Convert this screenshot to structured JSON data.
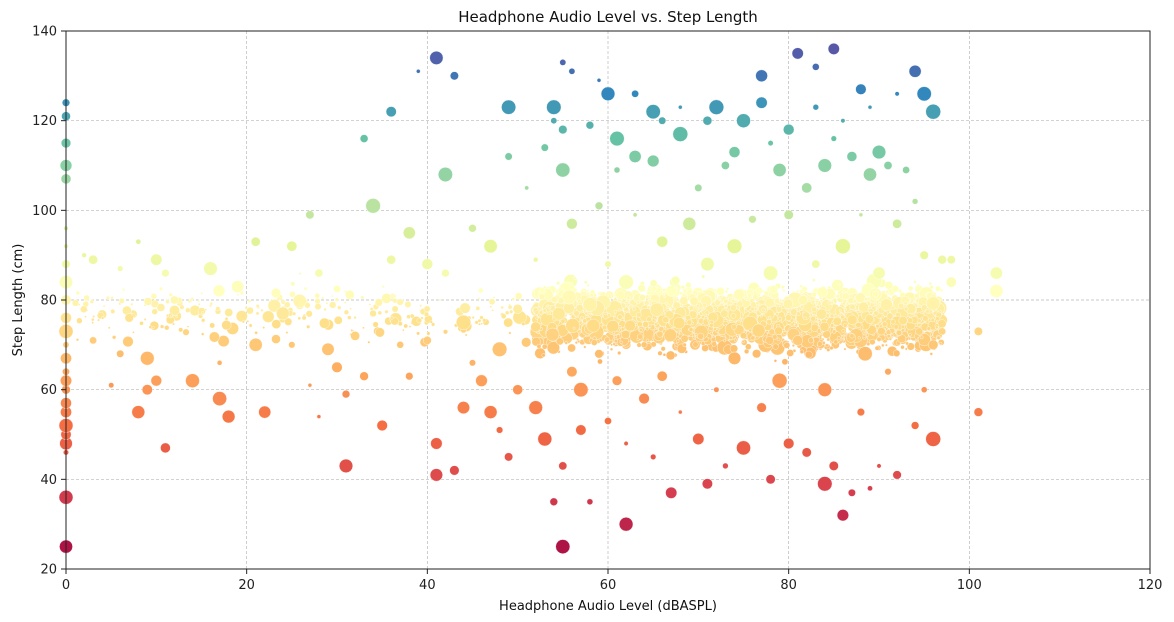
{
  "chart_data": {
    "type": "scatter",
    "title": "Headphone Audio Level vs. Step Length",
    "xlabel": "Headphone Audio Level (dBASPL)",
    "ylabel": "Step Length (cm)",
    "xlim": [
      0,
      120
    ],
    "ylim": [
      20,
      140
    ],
    "xticks": [
      0,
      20,
      40,
      60,
      80,
      100,
      120
    ],
    "yticks": [
      20,
      40,
      60,
      80,
      100,
      120,
      140
    ],
    "grid": true,
    "colormap": "Spectral (color mapped to step length: red = short, yellow = mid, blue = long)",
    "colors": {
      "stop_20": "#9e0142",
      "stop_37": "#d53e4f",
      "stop_52": "#f46d43",
      "stop_65": "#fdae61",
      "stop_75": "#fee08b",
      "stop_82": "#ffffbf",
      "stop_92": "#e6f598",
      "stop_104": "#abdda4",
      "stop_116": "#66c2a5",
      "stop_126": "#3288bd",
      "stop_138": "#5e4fa2"
    },
    "points_note": "Several thousand points; main cluster at x 52-97 dBASPL, y 40-100 cm; sparse points at x 0-50 mostly y 45-100; x=0 column spans y 25-124.",
    "series": [
      {
        "points": [
          [
            0,
            25
          ],
          [
            0,
            36
          ],
          [
            0,
            46
          ],
          [
            0,
            48
          ],
          [
            0,
            50
          ],
          [
            0,
            52
          ],
          [
            0,
            55
          ],
          [
            0,
            57
          ],
          [
            0,
            60
          ],
          [
            0,
            62
          ],
          [
            0,
            64
          ],
          [
            0,
            67
          ],
          [
            0,
            70
          ],
          [
            0,
            73
          ],
          [
            0,
            76
          ],
          [
            0,
            80
          ],
          [
            0,
            84
          ],
          [
            0,
            88
          ],
          [
            0,
            92
          ],
          [
            0,
            96
          ],
          [
            0,
            107
          ],
          [
            0,
            110
          ],
          [
            0,
            115
          ],
          [
            0,
            121
          ],
          [
            0,
            124
          ],
          [
            2,
            90
          ],
          [
            3,
            89
          ],
          [
            3,
            71
          ],
          [
            5,
            61
          ],
          [
            6,
            87
          ],
          [
            6,
            68
          ],
          [
            7,
            76
          ],
          [
            8,
            93
          ],
          [
            8,
            55
          ],
          [
            9,
            60
          ],
          [
            9,
            67
          ],
          [
            10,
            89
          ],
          [
            10,
            62
          ],
          [
            11,
            47
          ],
          [
            11,
            86
          ],
          [
            12,
            80
          ],
          [
            14,
            62
          ],
          [
            16,
            87
          ],
          [
            17,
            58
          ],
          [
            17,
            66
          ],
          [
            18,
            54
          ],
          [
            19,
            83
          ],
          [
            21,
            93
          ],
          [
            21,
            70
          ],
          [
            22,
            55
          ],
          [
            24,
            77
          ],
          [
            25,
            92
          ],
          [
            25,
            70
          ],
          [
            27,
            99
          ],
          [
            27,
            61
          ],
          [
            28,
            86
          ],
          [
            28,
            54
          ],
          [
            29,
            69
          ],
          [
            30,
            65
          ],
          [
            31,
            43
          ],
          [
            31,
            59
          ],
          [
            32,
            72
          ],
          [
            33,
            116
          ],
          [
            33,
            63
          ],
          [
            34,
            101
          ],
          [
            34,
            77
          ],
          [
            35,
            52
          ],
          [
            36,
            122
          ],
          [
            36,
            89
          ],
          [
            37,
            70
          ],
          [
            38,
            95
          ],
          [
            38,
            63
          ],
          [
            39,
            131
          ],
          [
            40,
            88
          ],
          [
            40,
            71
          ],
          [
            41,
            134
          ],
          [
            41,
            48
          ],
          [
            41,
            41
          ],
          [
            42,
            108
          ],
          [
            42,
            86
          ],
          [
            43,
            130
          ],
          [
            43,
            42
          ],
          [
            44,
            75
          ],
          [
            44,
            56
          ],
          [
            45,
            96
          ],
          [
            45,
            66
          ],
          [
            46,
            62
          ],
          [
            47,
            92
          ],
          [
            47,
            55
          ],
          [
            48,
            51
          ],
          [
            48,
            69
          ],
          [
            49,
            123
          ],
          [
            49,
            112
          ],
          [
            49,
            45
          ],
          [
            50,
            60
          ],
          [
            50,
            78
          ],
          [
            51,
            105
          ],
          [
            52,
            89
          ],
          [
            52,
            74
          ],
          [
            52,
            56
          ],
          [
            53,
            114
          ],
          [
            53,
            49
          ],
          [
            54,
            123
          ],
          [
            54,
            120
          ],
          [
            54,
            35
          ],
          [
            55,
            133
          ],
          [
            55,
            118
          ],
          [
            55,
            109
          ],
          [
            55,
            25
          ],
          [
            55,
            43
          ],
          [
            56,
            131
          ],
          [
            56,
            97
          ],
          [
            56,
            64
          ],
          [
            57,
            60
          ],
          [
            57,
            51
          ],
          [
            58,
            119
          ],
          [
            58,
            35
          ],
          [
            58,
            79
          ],
          [
            59,
            129
          ],
          [
            59,
            101
          ],
          [
            59,
            68
          ],
          [
            60,
            126
          ],
          [
            60,
            88
          ],
          [
            60,
            53
          ],
          [
            61,
            116
          ],
          [
            61,
            109
          ],
          [
            61,
            62
          ],
          [
            62,
            30
          ],
          [
            62,
            48
          ],
          [
            62,
            84
          ],
          [
            63,
            126
          ],
          [
            63,
            112
          ],
          [
            63,
            99
          ],
          [
            64,
            70
          ],
          [
            64,
            58
          ],
          [
            65,
            122
          ],
          [
            65,
            111
          ],
          [
            65,
            45
          ],
          [
            66,
            120
          ],
          [
            66,
            93
          ],
          [
            66,
            63
          ],
          [
            67,
            37
          ],
          [
            67,
            82
          ],
          [
            68,
            123
          ],
          [
            68,
            117
          ],
          [
            68,
            55
          ],
          [
            69,
            97
          ],
          [
            69,
            75
          ],
          [
            70,
            105
          ],
          [
            70,
            49
          ],
          [
            71,
            120
          ],
          [
            71,
            88
          ],
          [
            71,
            39
          ],
          [
            72,
            123
          ],
          [
            72,
            60
          ],
          [
            73,
            110
          ],
          [
            73,
            43
          ],
          [
            74,
            113
          ],
          [
            74,
            92
          ],
          [
            74,
            67
          ],
          [
            75,
            120
          ],
          [
            75,
            47
          ],
          [
            76,
            98
          ],
          [
            76,
            78
          ],
          [
            77,
            130
          ],
          [
            77,
            124
          ],
          [
            77,
            56
          ],
          [
            78,
            115
          ],
          [
            78,
            40
          ],
          [
            78,
            86
          ],
          [
            79,
            109
          ],
          [
            79,
            62
          ],
          [
            80,
            118
          ],
          [
            80,
            99
          ],
          [
            80,
            48
          ],
          [
            81,
            135
          ],
          [
            81,
            71
          ],
          [
            82,
            105
          ],
          [
            82,
            46
          ],
          [
            83,
            123
          ],
          [
            83,
            132
          ],
          [
            83,
            88
          ],
          [
            84,
            39
          ],
          [
            84,
            110
          ],
          [
            84,
            60
          ],
          [
            85,
            136
          ],
          [
            85,
            116
          ],
          [
            85,
            43
          ],
          [
            86,
            120
          ],
          [
            86,
            32
          ],
          [
            86,
            92
          ],
          [
            87,
            112
          ],
          [
            87,
            37
          ],
          [
            87,
            72
          ],
          [
            88,
            127
          ],
          [
            88,
            99
          ],
          [
            88,
            55
          ],
          [
            89,
            123
          ],
          [
            89,
            108
          ],
          [
            89,
            38
          ],
          [
            90,
            113
          ],
          [
            90,
            86
          ],
          [
            90,
            43
          ],
          [
            91,
            110
          ],
          [
            91,
            64
          ],
          [
            92,
            126
          ],
          [
            92,
            41
          ],
          [
            92,
            97
          ],
          [
            93,
            109
          ],
          [
            93,
            78
          ],
          [
            94,
            131
          ],
          [
            94,
            102
          ],
          [
            94,
            52
          ],
          [
            95,
            126
          ],
          [
            95,
            90
          ],
          [
            95,
            60
          ],
          [
            96,
            122
          ],
          [
            96,
            70
          ],
          [
            96,
            49
          ],
          [
            97,
            89
          ],
          [
            97,
            73
          ],
          [
            98,
            84
          ],
          [
            98,
            89
          ],
          [
            101,
            73
          ],
          [
            101,
            55
          ],
          [
            103,
            86
          ],
          [
            103,
            82
          ]
        ]
      }
    ]
  }
}
